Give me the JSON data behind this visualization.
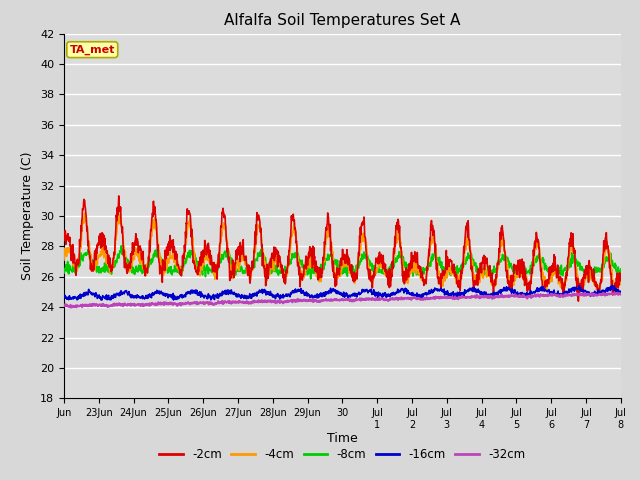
{
  "title": "Alfalfa Soil Temperatures Set A",
  "xlabel": "Time",
  "ylabel": "Soil Temperature (C)",
  "ylim": [
    18,
    42
  ],
  "n_days": 16,
  "background_color": "#dcdcdc",
  "plot_bg": "#dcdcdc",
  "series": {
    "-2cm": {
      "color": "#dd0000",
      "lw": 1.2
    },
    "-4cm": {
      "color": "#ff9900",
      "lw": 1.2
    },
    "-8cm": {
      "color": "#00cc00",
      "lw": 1.2
    },
    "-16cm": {
      "color": "#0000cc",
      "lw": 1.2
    },
    "-32cm": {
      "color": "#bb44bb",
      "lw": 1.5
    }
  },
  "annotation": {
    "text": "TA_met",
    "facecolor": "#ffffaa",
    "edgecolor": "#aaaa00",
    "textcolor": "#cc0000",
    "fontsize": 8,
    "fontweight": "bold"
  },
  "tick_labels_jun": [
    "Jun",
    "23Jun",
    "24Jun",
    "25Jun",
    "26Jun",
    "27Jun",
    "28Jun",
    "29Jun",
    "30"
  ],
  "tick_labels_jul": [
    "Jul 1",
    "Jul 2",
    "Jul 3",
    "Jul 4",
    "Jul 5",
    "Jul 6",
    "Jul 7",
    "Jul 8"
  ],
  "yticks": [
    18,
    20,
    22,
    24,
    26,
    28,
    30,
    32,
    34,
    36,
    38,
    40,
    42
  ]
}
